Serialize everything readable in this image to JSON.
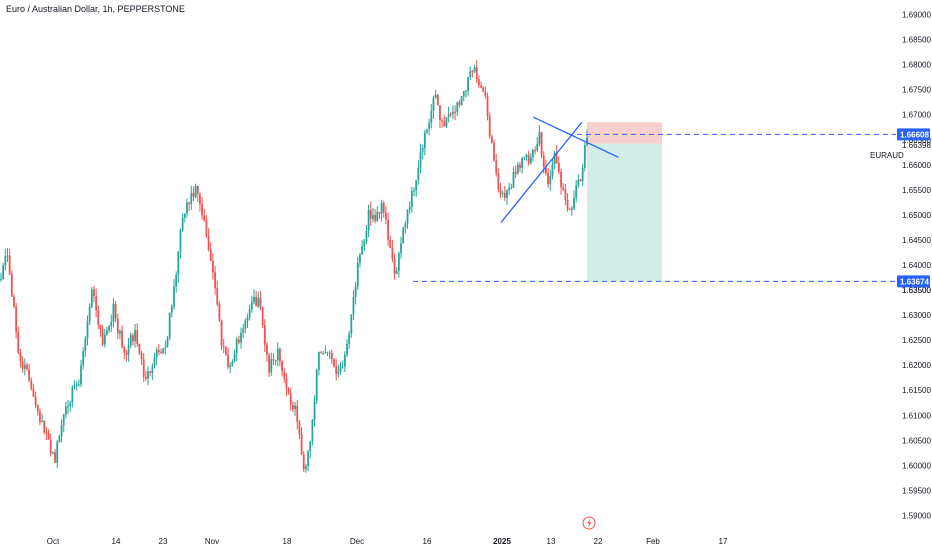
{
  "header": {
    "title": "Euro / Australian Dollar, 1h, PEPPERSTONE"
  },
  "colors": {
    "up": "#26a69a",
    "down": "#ef5350",
    "drawing": "#2962ff",
    "stop_zone": "#f8d0d0",
    "target_zone": "#d2ede8",
    "tag_bg": "#2962ff"
  },
  "icons": {
    "event": "lightning-icon"
  },
  "chart_data": {
    "type": "candlestick",
    "symbol_label": "EURAUD",
    "y_range": [
      1.5875,
      1.6925
    ],
    "y_ticks": [
      "1.69000",
      "1.68500",
      "1.68000",
      "1.67500",
      "1.67000",
      "1.66500",
      "1.66000",
      "1.65500",
      "1.65000",
      "1.64500",
      "1.64000",
      "1.63500",
      "1.63000",
      "1.62500",
      "1.62000",
      "1.61500",
      "1.61000",
      "1.60500",
      "1.60000",
      "1.59500",
      "1.59000"
    ],
    "x_ticks": [
      "Oct",
      "14",
      "23",
      "Nov",
      "18",
      "Dec",
      "16",
      "2025",
      "13",
      "22",
      "Feb",
      "17"
    ],
    "price_tags": [
      {
        "label": "1.66608",
        "value": 1.66608
      },
      {
        "label": "1.63674",
        "value": 1.63674
      }
    ],
    "price_labels": [
      {
        "label": "1.66398",
        "value": 1.66398
      },
      {
        "label": "1.63500",
        "value": 1.635
      }
    ],
    "anchors": [
      [
        0,
        1.6385
      ],
      [
        3,
        1.6425
      ],
      [
        8,
        1.6225
      ],
      [
        14,
        1.616
      ],
      [
        20,
        1.6065
      ],
      [
        25,
        1.6015
      ],
      [
        30,
        1.6125
      ],
      [
        36,
        1.616
      ],
      [
        42,
        1.6355
      ],
      [
        47,
        1.625
      ],
      [
        52,
        1.631
      ],
      [
        57,
        1.622
      ],
      [
        62,
        1.6265
      ],
      [
        67,
        1.6165
      ],
      [
        71,
        1.6225
      ],
      [
        76,
        1.6235
      ],
      [
        80,
        1.635
      ],
      [
        84,
        1.6495
      ],
      [
        90,
        1.655
      ],
      [
        94,
        1.648
      ],
      [
        98,
        1.639
      ],
      [
        102,
        1.625
      ],
      [
        106,
        1.6195
      ],
      [
        110,
        1.6255
      ],
      [
        115,
        1.6315
      ],
      [
        119,
        1.6335
      ],
      [
        124,
        1.6195
      ],
      [
        128,
        1.623
      ],
      [
        133,
        1.614
      ],
      [
        137,
        1.6095
      ],
      [
        140,
        1.5985
      ],
      [
        143,
        1.6055
      ],
      [
        147,
        1.622
      ],
      [
        152,
        1.623
      ],
      [
        155,
        1.6185
      ],
      [
        159,
        1.6215
      ],
      [
        162,
        1.6305
      ],
      [
        165,
        1.6395
      ],
      [
        168,
        1.644
      ],
      [
        170,
        1.651
      ],
      [
        173,
        1.648
      ],
      [
        176,
        1.652
      ],
      [
        179,
        1.646
      ],
      [
        182,
        1.637
      ],
      [
        185,
        1.6455
      ],
      [
        188,
        1.651
      ],
      [
        191,
        1.6555
      ],
      [
        194,
        1.662
      ],
      [
        198,
        1.6685
      ],
      [
        201,
        1.674
      ],
      [
        204,
        1.668
      ],
      [
        208,
        1.6705
      ],
      [
        212,
        1.672
      ],
      [
        215,
        1.676
      ],
      [
        218,
        1.6795
      ],
      [
        221,
        1.677
      ],
      [
        224,
        1.6725
      ],
      [
        227,
        1.664
      ],
      [
        230,
        1.6555
      ],
      [
        233,
        1.6525
      ],
      [
        237,
        1.658
      ],
      [
        241,
        1.6615
      ],
      [
        245,
        1.6605
      ],
      [
        249,
        1.6655
      ],
      [
        253,
        1.656
      ],
      [
        256,
        1.662
      ],
      [
        259,
        1.6565
      ],
      [
        262,
        1.65
      ],
      [
        265,
        1.6535
      ],
      [
        268,
        1.657
      ],
      [
        271,
        1.6655
      ]
    ],
    "drawings": {
      "triangle_upper": [
        [
          0.2,
          1.6695
        ],
        [
          0.302,
          1.6615
        ]
      ],
      "triangle_lower": [
        [
          0.176,
          1.6485
        ],
        [
          0.296,
          1.6685
        ]
      ],
      "position": {
        "entry": 1.6642,
        "stop": 1.6685,
        "target": 1.63674
      }
    }
  }
}
